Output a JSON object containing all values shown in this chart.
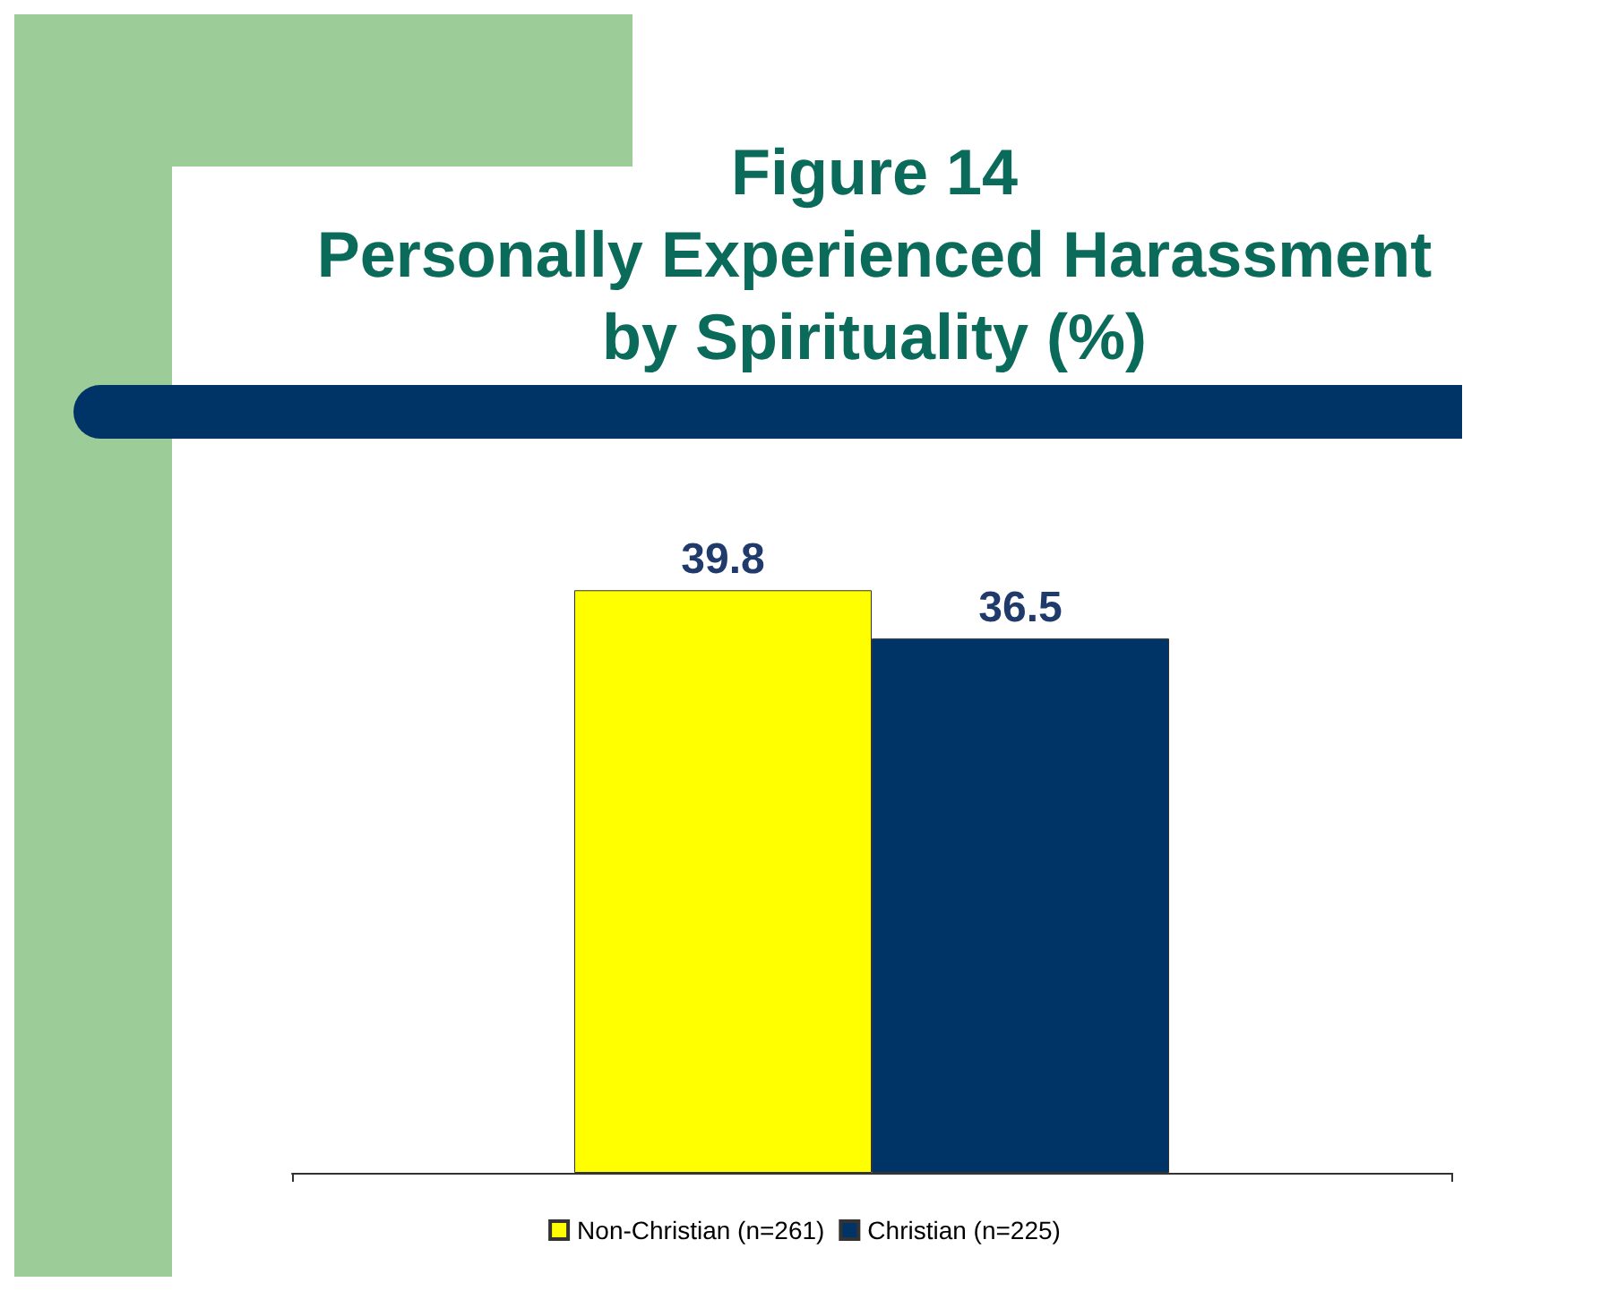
{
  "chart_data": {
    "type": "bar",
    "title": "Figure 14\nPersonally Experienced Harassment\nby Spirituality (%)",
    "categories": [
      null
    ],
    "series": [
      {
        "name": "Non-Christian (n=261)",
        "color": "#ffff00",
        "values": [
          39.8
        ]
      },
      {
        "name": "Christian (n=225)",
        "color": "#003366",
        "values": [
          36.5
        ]
      }
    ],
    "data_labels": true,
    "legend": "bottom",
    "grid": false
  }
}
